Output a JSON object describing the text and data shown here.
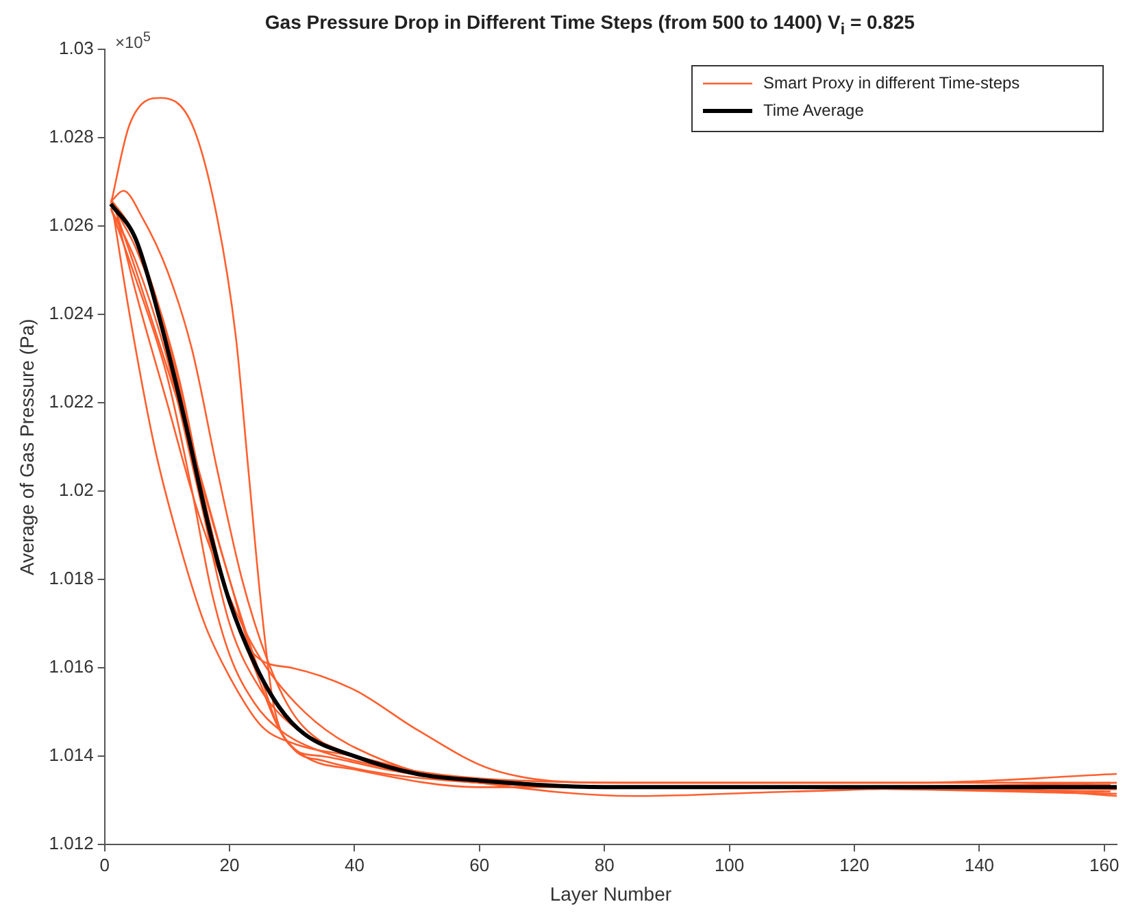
{
  "chart_data": {
    "type": "line",
    "title": "Gas Pressure Drop in Different Time Steps (from 500 to 1400) V$_{i}$ = 0.825",
    "xlabel": "Layer Number",
    "ylabel": "Average of Gas Pressure (Pa)",
    "annotations": [
      "×10$^{5}$"
    ],
    "xlim": [
      0,
      162
    ],
    "xticks": [
      0,
      20,
      40,
      60,
      80,
      100,
      120,
      140,
      160
    ],
    "ylim": [
      1.012,
      1.03
    ],
    "yticks": [
      1.012,
      1.014,
      1.016,
      1.018,
      1.02,
      1.022,
      1.024,
      1.026,
      1.028,
      1.03
    ],
    "grid": false,
    "legend": "top right",
    "marker": "none",
    "line_style": "solid",
    "series": [
      {
        "name": "Smart Proxy in different Time-steps",
        "color": "#ff5f2e",
        "x": [
          1,
          4,
          9,
          14,
          18,
          21,
          23,
          25,
          27,
          30,
          35,
          45,
          60,
          80,
          100,
          130,
          162
        ],
        "values": [
          1.0265,
          1.0283,
          1.0289,
          1.0283,
          1.0262,
          1.0235,
          1.0205,
          1.0175,
          1.0152,
          1.0142,
          1.0139,
          1.0136,
          1.0134,
          1.0133,
          1.0133,
          1.0133,
          1.01325
        ]
      },
      {
        "color": "#ff5f2e",
        "x": [
          2,
          5,
          10,
          15,
          20,
          24,
          30,
          40,
          50,
          62,
          80,
          100,
          130,
          161
        ],
        "values": [
          1.0263,
          1.0255,
          1.0235,
          1.0205,
          1.018,
          1.0163,
          1.016,
          1.0155,
          1.0146,
          1.0137,
          1.0134,
          1.0134,
          1.0134,
          1.0134
        ]
      },
      {
        "color": "#ff5f2e",
        "x": [
          1.5,
          4,
          8,
          12,
          16,
          20,
          25,
          30,
          40,
          60,
          90,
          120,
          160
        ],
        "values": [
          1.0262,
          1.024,
          1.021,
          1.0188,
          1.017,
          1.0158,
          1.0147,
          1.0143,
          1.014,
          1.0134,
          1.0133,
          1.0133,
          1.0132
        ]
      },
      {
        "color": "#ff5f2e",
        "x": [
          1,
          5,
          10,
          14,
          17,
          20,
          24,
          28,
          33,
          40,
          60,
          90,
          120,
          162
        ],
        "values": [
          1.0264,
          1.0248,
          1.0226,
          1.02,
          1.0178,
          1.0163,
          1.0152,
          1.0146,
          1.0142,
          1.0139,
          1.0134,
          1.0133,
          1.0133,
          1.0134
        ]
      },
      {
        "color": "#ff5f2e",
        "x": [
          1,
          3,
          6,
          10,
          14,
          18,
          22,
          26,
          30,
          35,
          45,
          60,
          90,
          130,
          162
        ],
        "values": [
          1.02655,
          1.0268,
          1.0262,
          1.025,
          1.0232,
          1.0205,
          1.018,
          1.0162,
          1.015,
          1.0143,
          1.0138,
          1.0135,
          1.0134,
          1.0134,
          1.0136
        ]
      },
      {
        "color": "#ff5f2e",
        "x": [
          1,
          5,
          10,
          15,
          20,
          25,
          30,
          35,
          45,
          60,
          85,
          110,
          140,
          162
        ],
        "values": [
          1.0264,
          1.0252,
          1.023,
          1.02,
          1.017,
          1.0155,
          1.0147,
          1.0143,
          1.0138,
          1.0134,
          1.0131,
          1.0132,
          1.0133,
          1.0131
        ]
      },
      {
        "color": "#ff5f2e",
        "x": [
          2,
          5,
          10,
          15,
          20,
          25,
          32,
          40,
          60,
          100,
          161
        ],
        "values": [
          1.0262,
          1.0245,
          1.022,
          1.0195,
          1.0176,
          1.0162,
          1.015,
          1.0142,
          1.0134,
          1.0133,
          1.01335
        ]
      },
      {
        "color": "#ff5f2e",
        "x": [
          1,
          4,
          8,
          12,
          16,
          20,
          24,
          28,
          32,
          40,
          60,
          100,
          162
        ],
        "values": [
          1.0266,
          1.026,
          1.0245,
          1.0225,
          1.0198,
          1.0175,
          1.016,
          1.0146,
          1.014,
          1.0137,
          1.0133,
          1.0133,
          1.01315
        ]
      },
      {
        "color": "#ff5f2e",
        "x": [
          1.5,
          5,
          10,
          15,
          20,
          25,
          28,
          31,
          35,
          45,
          60,
          100,
          161
        ],
        "values": [
          1.02645,
          1.025,
          1.0228,
          1.0205,
          1.018,
          1.0158,
          1.0146,
          1.0141,
          1.014,
          1.0137,
          1.0134,
          1.0133,
          1.0132
        ]
      },
      {
        "name": "Time Average",
        "color": "#000000",
        "x": [
          1,
          5,
          9,
          13,
          17,
          20,
          24,
          28,
          32,
          40,
          50,
          60,
          80,
          100,
          120,
          140,
          162
        ],
        "values": [
          1.0265,
          1.0257,
          1.0238,
          1.0215,
          1.019,
          1.0175,
          1.0161,
          1.0151,
          1.0145,
          1.014,
          1.0136,
          1.01345,
          1.0133,
          1.0133,
          1.0133,
          1.0133,
          1.0133
        ]
      }
    ]
  }
}
